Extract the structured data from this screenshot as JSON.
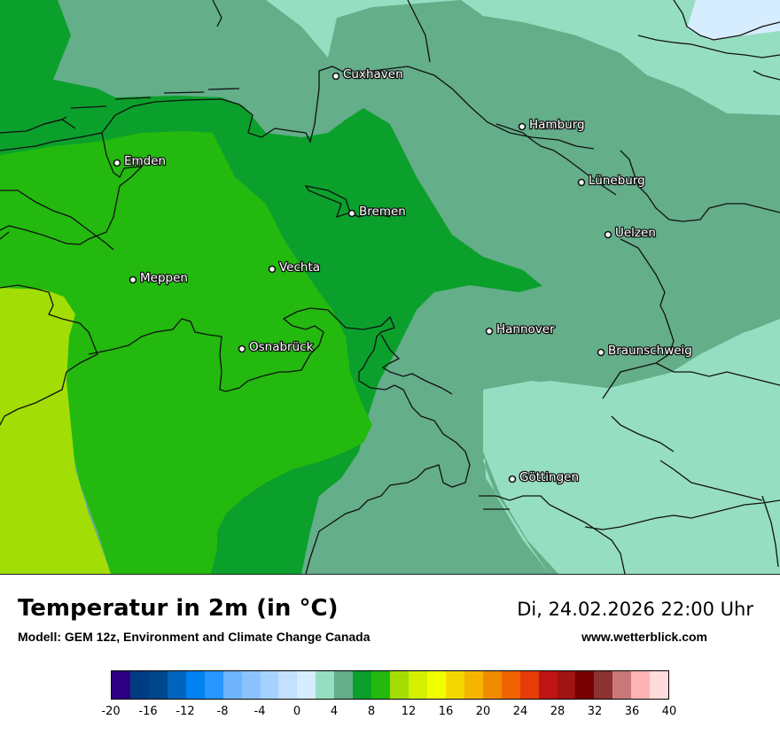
{
  "map": {
    "title": "Temperatur in 2m (in °C)",
    "model": "Modell: GEM 12z, Environment and Climate Change Canada",
    "datetime": "Di, 24.02.2026 22:00 Uhr",
    "website": "www.wetterblick.com",
    "cities": [
      {
        "name": "Cuxhaven"
      },
      {
        "name": "Hamburg"
      },
      {
        "name": "Emden"
      },
      {
        "name": "Lüneburg"
      },
      {
        "name": "Bremen"
      },
      {
        "name": "Uelzen"
      },
      {
        "name": "Vechta"
      },
      {
        "name": "Meppen"
      },
      {
        "name": "Hannover"
      },
      {
        "name": "Osnabrück"
      },
      {
        "name": "Braunschweig"
      },
      {
        "name": "Göttingen"
      }
    ],
    "field_colors": {
      "sea": "#d6ecff",
      "t4": "#96dec1",
      "t6": "#64ae8a",
      "t8": "#0ba02c",
      "t10": "#23b90f",
      "t12": "#a2de05"
    }
  },
  "legend": {
    "unit": "°C",
    "ticks": [
      "-20",
      "-16",
      "-12",
      "-8",
      "-4",
      "0",
      "4",
      "8",
      "12",
      "16",
      "20",
      "24",
      "28",
      "32",
      "36",
      "40"
    ],
    "colors": [
      "#2d0082",
      "#003c82",
      "#00468c",
      "#0064be",
      "#0082f0",
      "#2896ff",
      "#6eb4ff",
      "#8cc3ff",
      "#a5d2ff",
      "#c3e1ff",
      "#d6ecff",
      "#96dec1",
      "#64ae8a",
      "#0ba02c",
      "#23b90f",
      "#a2de05",
      "#d2f000",
      "#f0ff00",
      "#f5d700",
      "#f5b400",
      "#f08c00",
      "#f06400",
      "#e63c0a",
      "#be1414",
      "#a01414",
      "#780000",
      "#8c3232",
      "#c87878",
      "#ffb4b4",
      "#ffdcdc"
    ]
  }
}
